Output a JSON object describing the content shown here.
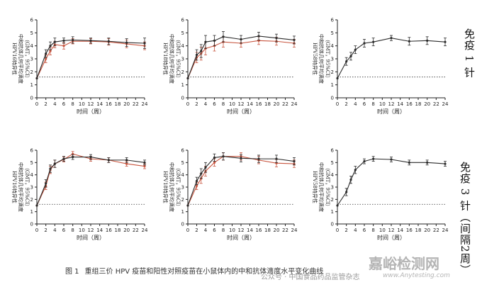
{
  "figure": {
    "caption_no": "图 1",
    "caption_text": "重组三价 HPV 疫苗和阳性对照疫苗在小鼠体内的中和抗体滴度水平变化曲线",
    "row_labels": [
      "免疫 1 针",
      "免疫 3 针（间隔2周）"
    ],
    "watermark_main": "嘉峪检测网",
    "watermark_url": "www.Anytesting.com",
    "watermark_account": "公众号 · 中国食品药品监管杂志",
    "colors": {
      "test": "#2b2b2b",
      "control": "#c8553f",
      "baseline": "#333333"
    }
  },
  "chart_data": [
    {
      "type": "line",
      "title": "",
      "ylabel": [
        "HPV16特异性",
        "中和抗体几何平均滴度",
        "（GMT，95%CI）"
      ],
      "xlabel": "时间（周）",
      "x_ticks": [
        0,
        2,
        4,
        6,
        8,
        10,
        12,
        14,
        16,
        18,
        20,
        22,
        24
      ],
      "y_ticks": [
        0,
        1,
        2,
        3,
        4,
        5,
        6
      ],
      "xlim": [
        0,
        24
      ],
      "ylim": [
        0,
        6
      ],
      "baseline": 1.6,
      "series": [
        {
          "name": "重组三价 HPV 疫苗",
          "color": "#2b2b2b",
          "x": [
            0,
            2,
            3,
            4,
            6,
            8,
            12,
            16,
            20,
            24
          ],
          "y": [
            1.5,
            3.4,
            4.0,
            4.3,
            4.4,
            4.45,
            4.4,
            4.35,
            4.25,
            4.2
          ],
          "err": [
            0,
            0.3,
            0.3,
            0.3,
            0.2,
            0.25,
            0.2,
            0.25,
            0.3,
            0.4
          ]
        },
        {
          "name": "阳性对照疫苗",
          "color": "#c8553f",
          "x": [
            0,
            2,
            3,
            4,
            6,
            8,
            12,
            16,
            20,
            24
          ],
          "y": [
            1.5,
            3.0,
            3.6,
            4.1,
            4.0,
            4.35,
            4.35,
            4.3,
            4.15,
            4.0
          ],
          "err": [
            0,
            0.3,
            0.3,
            0.25,
            0.25,
            0.2,
            0.2,
            0.25,
            0.3,
            0.3
          ]
        }
      ]
    },
    {
      "type": "line",
      "title": "",
      "ylabel": [
        "HPV18特异性",
        "中和抗体几何平均滴度",
        "（GMT，95%CI）"
      ],
      "xlabel": "时间（周）",
      "x_ticks": [
        0,
        2,
        4,
        6,
        8,
        10,
        12,
        14,
        16,
        18,
        20,
        22,
        24
      ],
      "y_ticks": [
        0,
        1,
        2,
        3,
        4,
        5,
        6
      ],
      "xlim": [
        0,
        24
      ],
      "ylim": [
        0,
        6
      ],
      "baseline": 1.6,
      "series": [
        {
          "name": "重组三价 HPV 疫苗",
          "color": "#2b2b2b",
          "x": [
            0,
            2,
            3,
            4,
            6,
            8,
            12,
            16,
            20,
            24
          ],
          "y": [
            1.5,
            3.3,
            3.6,
            4.3,
            4.4,
            4.7,
            4.5,
            4.75,
            4.6,
            4.45
          ],
          "err": [
            0,
            0.4,
            0.5,
            0.5,
            0.4,
            0.4,
            0.3,
            0.3,
            0.3,
            0.3
          ]
        },
        {
          "name": "阳性对照疫苗",
          "color": "#c8553f",
          "x": [
            0,
            2,
            3,
            4,
            6,
            8,
            12,
            16,
            20,
            24
          ],
          "y": [
            1.5,
            3.1,
            3.4,
            3.8,
            4.0,
            4.3,
            4.2,
            4.4,
            4.35,
            4.2
          ],
          "err": [
            0,
            0.4,
            0.5,
            0.5,
            0.4,
            0.4,
            0.3,
            0.3,
            0.3,
            0.3
          ]
        }
      ]
    },
    {
      "type": "line",
      "title": "",
      "ylabel": [
        "HPV58特异性",
        "中和抗体几何平均滴度",
        "（GMT，95%CI）"
      ],
      "xlabel": "时间（周）",
      "x_ticks": [
        0,
        2,
        4,
        6,
        8,
        10,
        12,
        14,
        16,
        18,
        20,
        22,
        24
      ],
      "y_ticks": [
        0,
        1,
        2,
        3,
        4,
        5,
        6
      ],
      "xlim": [
        0,
        24
      ],
      "ylim": [
        0,
        6
      ],
      "baseline": 1.6,
      "series": [
        {
          "name": "重组三价 HPV 疫苗",
          "color": "#2b2b2b",
          "x": [
            0,
            2,
            3,
            4,
            6,
            8,
            12,
            16,
            20,
            24
          ],
          "y": [
            1.5,
            2.8,
            3.2,
            3.7,
            4.2,
            4.3,
            4.6,
            4.35,
            4.4,
            4.3
          ],
          "err": [
            0,
            0.3,
            0.3,
            0.3,
            0.3,
            0.3,
            0.2,
            0.3,
            0.3,
            0.3
          ]
        }
      ]
    },
    {
      "type": "line",
      "title": "",
      "ylabel": [
        "HPV16特异性",
        "中和抗体几何平均滴度",
        "（GMT，95%CI）"
      ],
      "xlabel": "时间（周）",
      "x_ticks": [
        0,
        2,
        4,
        6,
        8,
        10,
        12,
        14,
        16,
        18,
        20,
        22,
        24
      ],
      "y_ticks": [
        0,
        1,
        2,
        3,
        4,
        5,
        6
      ],
      "xlim": [
        0,
        24
      ],
      "ylim": [
        0,
        6
      ],
      "baseline": 1.6,
      "series": [
        {
          "name": "重组三价 HPV 疫苗",
          "color": "#2b2b2b",
          "x": [
            0,
            2,
            3,
            4,
            6,
            8,
            12,
            16,
            20,
            24
          ],
          "y": [
            1.5,
            3.3,
            4.5,
            4.9,
            5.3,
            5.45,
            5.45,
            5.2,
            5.2,
            5.0
          ],
          "err": [
            0,
            0.3,
            0.3,
            0.3,
            0.2,
            0.2,
            0.2,
            0.2,
            0.2,
            0.2
          ]
        },
        {
          "name": "阳性对照疫苗",
          "color": "#c8553f",
          "x": [
            0,
            2,
            3,
            4,
            6,
            8,
            12,
            16,
            20,
            24
          ],
          "y": [
            1.5,
            3.1,
            4.4,
            4.9,
            5.25,
            5.7,
            5.3,
            5.2,
            4.9,
            4.7
          ],
          "err": [
            0,
            0.3,
            0.3,
            0.3,
            0.2,
            0.2,
            0.2,
            0.2,
            0.2,
            0.2
          ]
        }
      ]
    },
    {
      "type": "line",
      "title": "",
      "ylabel": [
        "HPV18特异性",
        "中和抗体几何平均滴度",
        "（GMT，95%CI）"
      ],
      "xlabel": "时间（周）",
      "x_ticks": [
        0,
        2,
        4,
        6,
        8,
        10,
        12,
        14,
        16,
        18,
        20,
        22,
        24
      ],
      "y_ticks": [
        0,
        1,
        2,
        3,
        4,
        5,
        6
      ],
      "xlim": [
        0,
        24
      ],
      "ylim": [
        0,
        6
      ],
      "baseline": 1.6,
      "series": [
        {
          "name": "重组三价 HPV 疫苗",
          "color": "#2b2b2b",
          "x": [
            0,
            2,
            3,
            4,
            6,
            8,
            12,
            16,
            20,
            24
          ],
          "y": [
            1.5,
            3.5,
            4.1,
            4.6,
            5.4,
            5.5,
            5.35,
            5.3,
            5.3,
            5.1
          ],
          "err": [
            0,
            0.3,
            0.4,
            0.4,
            0.3,
            0.3,
            0.3,
            0.3,
            0.3,
            0.3
          ]
        },
        {
          "name": "阳性对照疫苗",
          "color": "#c8553f",
          "x": [
            0,
            2,
            3,
            4,
            6,
            8,
            12,
            16,
            20,
            24
          ],
          "y": [
            1.5,
            3.1,
            3.7,
            4.3,
            5.0,
            5.5,
            5.5,
            5.2,
            4.95,
            4.9
          ],
          "err": [
            0,
            0.3,
            0.4,
            0.4,
            0.3,
            0.3,
            0.3,
            0.3,
            0.3,
            0.3
          ]
        }
      ]
    },
    {
      "type": "line",
      "title": "",
      "ylabel": [
        "HPV58特异性",
        "中和抗体几何平均滴度",
        "（GMT，95%CI）"
      ],
      "xlabel": "时间（周）",
      "x_ticks": [
        0,
        2,
        4,
        6,
        8,
        10,
        12,
        14,
        16,
        18,
        20,
        22,
        24
      ],
      "y_ticks": [
        0,
        1,
        2,
        3,
        4,
        5,
        6
      ],
      "xlim": [
        0,
        24
      ],
      "ylim": [
        0,
        6
      ],
      "baseline": 1.6,
      "series": [
        {
          "name": "重组三价 HPV 疫苗",
          "color": "#2b2b2b",
          "x": [
            0,
            2,
            3,
            4,
            6,
            8,
            12,
            16,
            20,
            24
          ],
          "y": [
            1.5,
            2.6,
            3.6,
            4.4,
            5.1,
            5.3,
            5.25,
            5.0,
            5.0,
            4.9
          ],
          "err": [
            0,
            0.3,
            0.3,
            0.3,
            0.2,
            0.2,
            0.2,
            0.2,
            0.2,
            0.2
          ]
        }
      ]
    }
  ]
}
